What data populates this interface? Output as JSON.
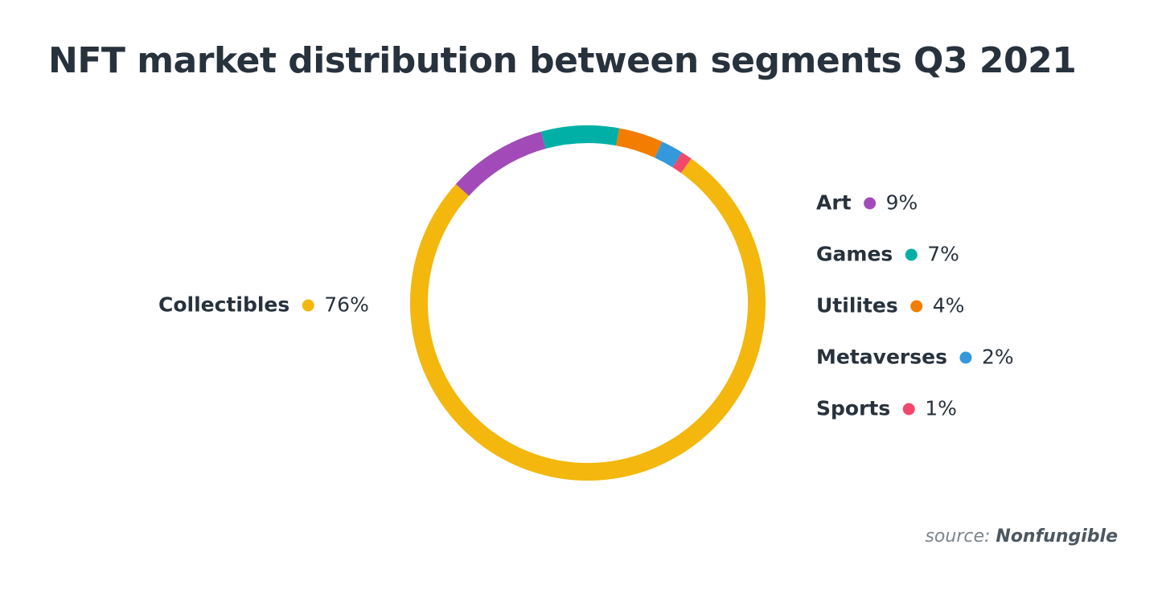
{
  "chart_data": {
    "type": "pie",
    "variant": "donut",
    "title": "NFT market distribution between segments Q3 2021",
    "source_label": "source:",
    "source_name": "Nonfungible",
    "slices": [
      {
        "name": "Art",
        "value": 9,
        "label": "9%",
        "color": "#a24bb8"
      },
      {
        "name": "Games",
        "value": 7,
        "label": "7%",
        "color": "#00b0a6"
      },
      {
        "name": "Utilites",
        "value": 4,
        "label": "4%",
        "color": "#f27d00"
      },
      {
        "name": "Metaverses",
        "value": 2,
        "label": "2%",
        "color": "#3498db"
      },
      {
        "name": "Sports",
        "value": 1,
        "label": "1%",
        "color": "#f1486c"
      },
      {
        "name": "Collectibles",
        "value": 76,
        "label": "76%",
        "color": "#f3b70d"
      }
    ],
    "legend_placement": "right (Collectibles on left)"
  }
}
